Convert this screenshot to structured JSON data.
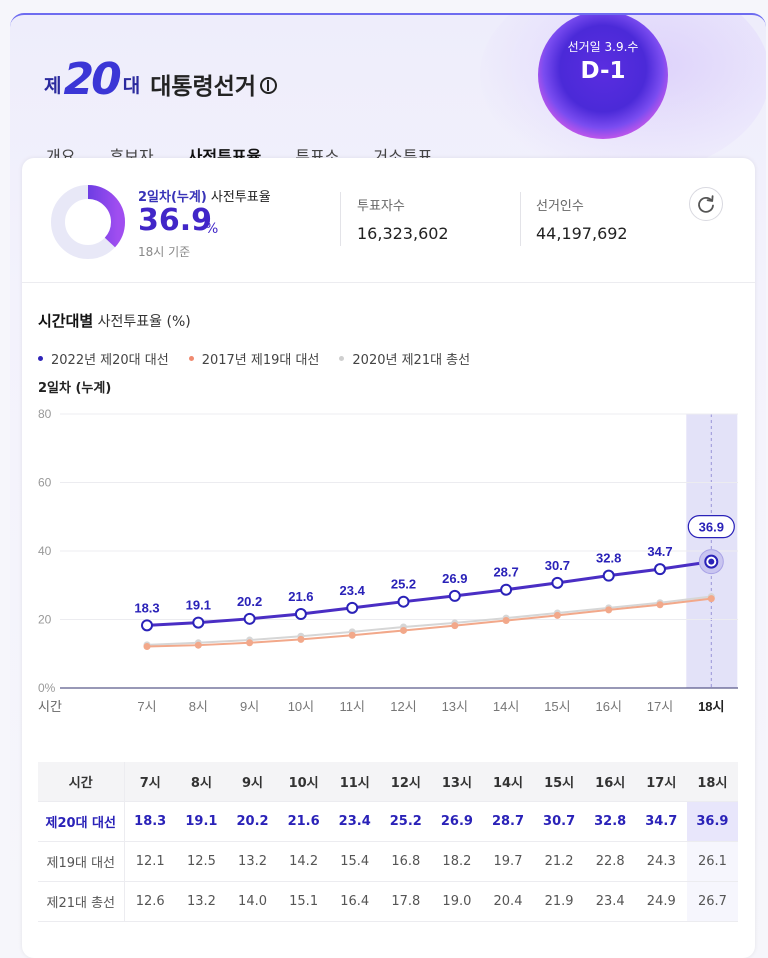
{
  "header": {
    "logo_prefix": "제",
    "logo_number": "20",
    "logo_suffix": "대",
    "logo_title": "대통령선거",
    "election_date_label": "선거일 3.9.수",
    "dday": "D-1"
  },
  "tabs": [
    {
      "label": "개요",
      "active": false
    },
    {
      "label": "후보자",
      "active": false
    },
    {
      "label": "사전투표율",
      "active": true
    },
    {
      "label": "투표소",
      "active": false
    },
    {
      "label": "거소투표",
      "active": false
    }
  ],
  "summary": {
    "label_highlight": "2일차(누계)",
    "label_rest": " 사전투표율",
    "value": "36.9",
    "unit": "%",
    "time": "18시 기준",
    "voters_label": "투표자수",
    "voters_value": "16,323,602",
    "electorate_label": "선거인수",
    "electorate_value": "44,197,692",
    "refresh_icon": "refresh-icon",
    "rate_fraction": 0.369
  },
  "chart_heading": {
    "bold": "시간대별",
    "rest": " 사전투표율",
    "unit": " (%)",
    "sub": "2일차 (누계)"
  },
  "colors": {
    "primary": "#4a2ec4",
    "s19": "#f2a88a",
    "s21": "#d6d6d6",
    "highlight_band": "#e3e2f8"
  },
  "chart_data": {
    "type": "line",
    "x": [
      "7시",
      "8시",
      "9시",
      "10시",
      "11시",
      "12시",
      "13시",
      "14시",
      "15시",
      "16시",
      "17시",
      "18시"
    ],
    "xlabel": "시간",
    "ylabel": "",
    "ylim": [
      0,
      80
    ],
    "yticks": [
      "0%",
      "20",
      "40",
      "60",
      "80"
    ],
    "grid": true,
    "legend_position": "top-left",
    "highlight_category": "18시",
    "series": [
      {
        "name": "2022년 제20대 대선",
        "values": [
          18.3,
          19.1,
          20.2,
          21.6,
          23.4,
          25.2,
          26.9,
          28.7,
          30.7,
          32.8,
          34.7,
          36.9
        ]
      },
      {
        "name": "2017년 제19대 대선",
        "values": [
          12.1,
          12.5,
          13.2,
          14.2,
          15.4,
          16.8,
          18.2,
          19.7,
          21.2,
          22.8,
          24.3,
          26.1
        ]
      },
      {
        "name": "2020년 제21대 총선",
        "values": [
          12.6,
          13.2,
          14.0,
          15.1,
          16.4,
          17.8,
          19.0,
          20.4,
          21.9,
          23.4,
          24.9,
          26.7
        ]
      }
    ]
  },
  "table": {
    "corner": "시간",
    "rows": [
      {
        "label": "제20대 대선",
        "values": [
          "18.3",
          "19.1",
          "20.2",
          "21.6",
          "23.4",
          "25.2",
          "26.9",
          "28.7",
          "30.7",
          "32.8",
          "34.7",
          "36.9"
        ]
      },
      {
        "label": "제19대 대선",
        "values": [
          "12.1",
          "12.5",
          "13.2",
          "14.2",
          "15.4",
          "16.8",
          "18.2",
          "19.7",
          "21.2",
          "22.8",
          "24.3",
          "26.1"
        ]
      },
      {
        "label": "제21대 총선",
        "values": [
          "12.6",
          "13.2",
          "14.0",
          "15.1",
          "16.4",
          "17.8",
          "19.0",
          "20.4",
          "21.9",
          "23.4",
          "24.9",
          "26.7"
        ]
      }
    ]
  }
}
